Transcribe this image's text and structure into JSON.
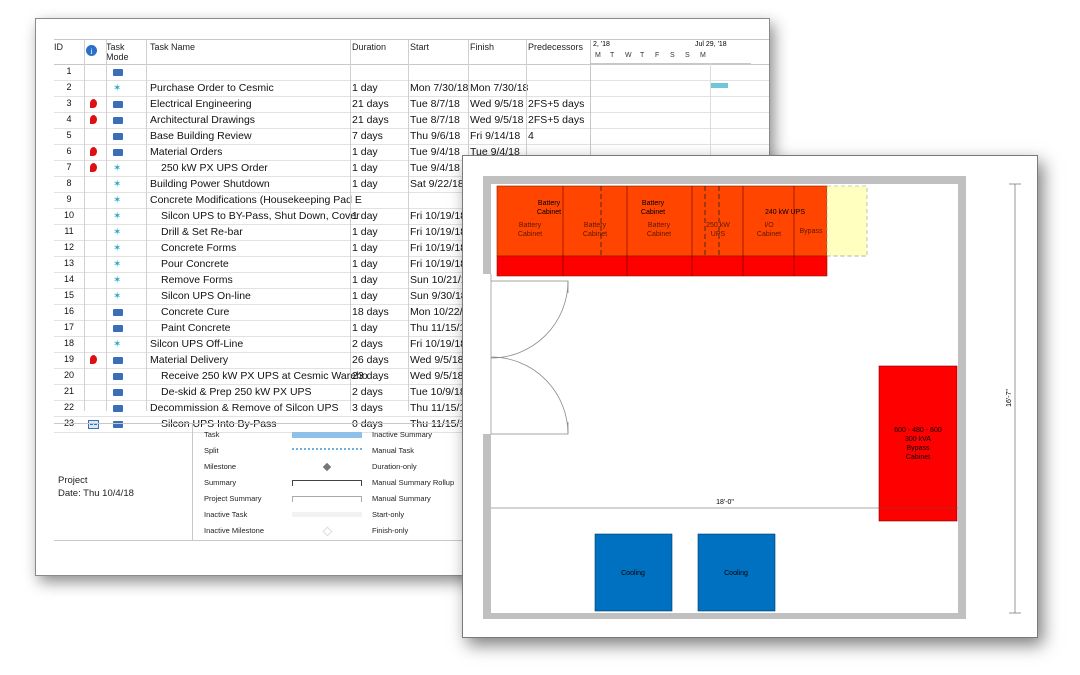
{
  "columns": {
    "id": "ID",
    "mode": "Task Mode",
    "name": "Task Name",
    "duration": "Duration",
    "start": "Start",
    "finish": "Finish",
    "predecessors": "Predecessors"
  },
  "timeline": {
    "left_date": "2, '18",
    "right_date": "Jul 29, '18",
    "days": [
      "M",
      "T",
      "W",
      "T",
      "F",
      "S",
      "S",
      "M"
    ]
  },
  "tasks": [
    {
      "id": "1",
      "ind": "",
      "mode": "auto",
      "name": "",
      "duration": "",
      "start": "",
      "finish": "",
      "pred": ""
    },
    {
      "id": "2",
      "ind": "",
      "mode": "manual",
      "name": "Purchase Order to Cesmic",
      "duration": "1 day",
      "start": "Mon 7/30/18",
      "finish": "Mon 7/30/18",
      "pred": ""
    },
    {
      "id": "3",
      "ind": "pin",
      "mode": "auto",
      "name": "Electrical Engineering",
      "duration": "21 days",
      "start": "Tue 8/7/18",
      "finish": "Wed 9/5/18",
      "pred": "2FS+5 days"
    },
    {
      "id": "4",
      "ind": "pin",
      "mode": "auto",
      "name": "Architectural Drawings",
      "duration": "21 days",
      "start": "Tue 8/7/18",
      "finish": "Wed 9/5/18",
      "pred": "2FS+5 days"
    },
    {
      "id": "5",
      "ind": "",
      "mode": "auto",
      "name": "Base Building Review",
      "duration": "7 days",
      "start": "Thu 9/6/18",
      "finish": "Fri 9/14/18",
      "pred": "4"
    },
    {
      "id": "6",
      "ind": "pin",
      "mode": "auto",
      "name": "Material Orders",
      "duration": "1 day",
      "start": "Tue 9/4/18",
      "finish": "Tue 9/4/18",
      "pred": ""
    },
    {
      "id": "7",
      "ind": "pin",
      "mode": "manual",
      "name": "250 kW PX UPS Order",
      "indent": 1,
      "duration": "1 day",
      "start": "Tue 9/4/18",
      "finish": "",
      "pred": ""
    },
    {
      "id": "8",
      "ind": "",
      "mode": "manual",
      "name": "Building Power Shutdown",
      "duration": "1 day",
      "start": "Sat 9/22/18",
      "finish": "",
      "pred": ""
    },
    {
      "id": "9",
      "ind": "",
      "mode": "manual",
      "name": "Concrete Modifications (Housekeeping Pad E",
      "duration": "",
      "start": "",
      "finish": "",
      "pred": ""
    },
    {
      "id": "10",
      "ind": "",
      "mode": "manual",
      "name": "Silcon UPS to BY-Pass, Shut Down, Cover",
      "indent": 1,
      "duration": "1 day",
      "start": "Fri 10/19/18",
      "finish": "",
      "pred": ""
    },
    {
      "id": "11",
      "ind": "",
      "mode": "manual",
      "name": "Drill & Set Re-bar",
      "indent": 1,
      "duration": "1 day",
      "start": "Fri 10/19/18",
      "finish": "",
      "pred": ""
    },
    {
      "id": "12",
      "ind": "",
      "mode": "manual",
      "name": "Concrete Forms",
      "indent": 1,
      "duration": "1 day",
      "start": "Fri 10/19/18",
      "finish": "",
      "pred": ""
    },
    {
      "id": "13",
      "ind": "",
      "mode": "manual",
      "name": "Pour Concrete",
      "indent": 1,
      "duration": "1 day",
      "start": "Fri 10/19/18",
      "finish": "",
      "pred": ""
    },
    {
      "id": "14",
      "ind": "",
      "mode": "manual",
      "name": "Remove Forms",
      "indent": 1,
      "duration": "1 day",
      "start": "Sun 10/21/18",
      "finish": "",
      "pred": ""
    },
    {
      "id": "15",
      "ind": "",
      "mode": "manual",
      "name": "Silcon UPS On-line",
      "indent": 1,
      "duration": "1 day",
      "start": "Sun 9/30/18",
      "finish": "",
      "pred": ""
    },
    {
      "id": "16",
      "ind": "",
      "mode": "auto",
      "name": "Concrete Cure",
      "indent": 1,
      "duration": "18 days",
      "start": "Mon 10/22/18",
      "finish": "",
      "pred": ""
    },
    {
      "id": "17",
      "ind": "",
      "mode": "auto",
      "name": "Paint Concrete",
      "indent": 1,
      "duration": "1 day",
      "start": "Thu 11/15/18",
      "finish": "",
      "pred": ""
    },
    {
      "id": "18",
      "ind": "",
      "mode": "manual",
      "name": "Silcon UPS Off-Line",
      "duration": "2 days",
      "start": "Fri 10/19/18",
      "finish": "",
      "pred": ""
    },
    {
      "id": "19",
      "ind": "pin",
      "mode": "auto",
      "name": "Material Delivery",
      "duration": "26 days",
      "start": "Wed 9/5/18",
      "finish": "",
      "pred": ""
    },
    {
      "id": "20",
      "ind": "",
      "mode": "auto",
      "name": "Receive 250 kW PX UPS at Cesmic Wareho",
      "indent": 1,
      "duration": "23 days",
      "start": "Wed 9/5/18",
      "finish": "",
      "pred": ""
    },
    {
      "id": "21",
      "ind": "",
      "mode": "auto",
      "name": "De-skid & Prep 250 kW PX UPS",
      "indent": 1,
      "duration": "2 days",
      "start": "Tue 10/9/18",
      "finish": "",
      "pred": ""
    },
    {
      "id": "22",
      "ind": "",
      "mode": "auto",
      "name": "Decommission & Remove of Silcon UPS",
      "duration": "3 days",
      "start": "Thu 11/15/18",
      "finish": "",
      "pred": ""
    },
    {
      "id": "23",
      "ind": "cal",
      "mode": "auto",
      "name": "Silcon UPS Into By-Pass",
      "indent": 1,
      "duration": "0 days",
      "start": "Thu 11/15/18",
      "finish": "",
      "pred": ""
    }
  ],
  "legend": {
    "project": "Project",
    "date": "Date: Thu 10/4/18",
    "left": [
      "Task",
      "Split",
      "Milestone",
      "Summary",
      "Project Summary",
      "Inactive Task",
      "Inactive Milestone"
    ],
    "right": [
      "Inactive Summary",
      "Manual Task",
      "Duration-only",
      "Manual Summary Rollup",
      "Manual Summary",
      "Start-only",
      "Finish-only"
    ]
  },
  "floorplan": {
    "cabinets_top": [
      "Battery Cabinet",
      "Battery Cabinet",
      "240 kW UPS"
    ],
    "cabinets_inner": [
      "Battery Cabinet",
      "Battery Cabinet",
      "Battery Cabinet",
      "250 kW UPS",
      "I/O Cabinet",
      "Bypass"
    ],
    "bypass_cabinet": [
      "600 - 480 - 600",
      "300 kVA",
      "Bypass",
      "Cabinet"
    ],
    "cooling": [
      "Cooling",
      "Cooling"
    ],
    "dim_width": "18'-0\"",
    "dim_height": "16'-7\"",
    "colors": {
      "orange": "#ff4500",
      "red": "#ff0000",
      "yellow": "#ffffc0",
      "blue": "#0070c0",
      "wall": "#c0c0c0"
    }
  }
}
